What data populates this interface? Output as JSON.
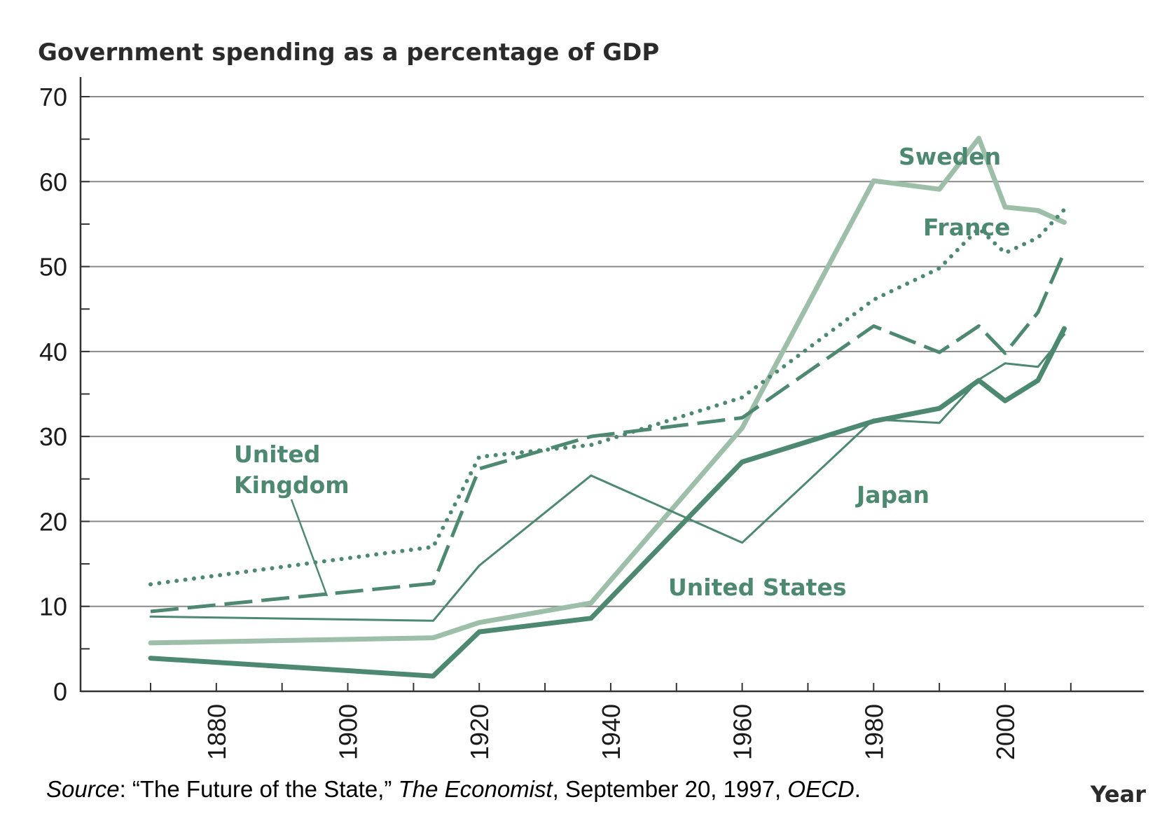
{
  "chart_data": {
    "type": "line",
    "ylabel": "Government spending as a percentage of GDP",
    "xlabel": "Year",
    "ylim": [
      0,
      70
    ],
    "xlim": [
      1860,
      2012
    ],
    "yticks": [
      0,
      10,
      20,
      30,
      40,
      50,
      60,
      70
    ],
    "xticks": [
      1880,
      1900,
      1920,
      1940,
      1960,
      1980,
      2000
    ],
    "grid": true,
    "series": [
      {
        "name": "France",
        "style": "dotted",
        "color": "#4d8870",
        "points": [
          [
            1870,
            12.6
          ],
          [
            1913,
            17.0
          ],
          [
            1920,
            27.6
          ],
          [
            1937,
            29.0
          ],
          [
            1960,
            34.6
          ],
          [
            1980,
            46.1
          ],
          [
            1990,
            49.8
          ],
          [
            1996,
            54.5
          ],
          [
            2000,
            51.6
          ],
          [
            2005,
            53.4
          ],
          [
            2009,
            56.7
          ]
        ]
      },
      {
        "name": "United Kingdom",
        "style": "dashed",
        "color": "#4d8870",
        "points": [
          [
            1870,
            9.4
          ],
          [
            1913,
            12.7
          ],
          [
            1920,
            26.2
          ],
          [
            1937,
            30.0
          ],
          [
            1960,
            32.2
          ],
          [
            1980,
            43.0
          ],
          [
            1990,
            39.9
          ],
          [
            1996,
            43.0
          ],
          [
            2000,
            39.8
          ],
          [
            2005,
            44.6
          ],
          [
            2009,
            51.7
          ]
        ]
      },
      {
        "name": "Japan",
        "style": "thin",
        "color": "#4d8870",
        "points": [
          [
            1870,
            8.8
          ],
          [
            1913,
            8.3
          ],
          [
            1920,
            14.8
          ],
          [
            1937,
            25.4
          ],
          [
            1960,
            17.5
          ],
          [
            1980,
            32.0
          ],
          [
            1990,
            31.6
          ],
          [
            1996,
            36.7
          ],
          [
            2000,
            38.6
          ],
          [
            2005,
            38.2
          ],
          [
            2009,
            42.0
          ]
        ]
      },
      {
        "name": "United States",
        "style": "thick",
        "color": "#4d8870",
        "points": [
          [
            1870,
            3.9
          ],
          [
            1913,
            1.8
          ],
          [
            1920,
            7.0
          ],
          [
            1937,
            8.6
          ],
          [
            1960,
            27.0
          ],
          [
            1980,
            31.8
          ],
          [
            1990,
            33.3
          ],
          [
            1996,
            36.6
          ],
          [
            2000,
            34.2
          ],
          [
            2005,
            36.6
          ],
          [
            2009,
            42.7
          ]
        ]
      },
      {
        "name": "Sweden",
        "style": "thick",
        "color": "#9dbea8",
        "points": [
          [
            1870,
            5.7
          ],
          [
            1913,
            6.3
          ],
          [
            1920,
            8.1
          ],
          [
            1937,
            10.4
          ],
          [
            1960,
            31.0
          ],
          [
            1980,
            60.1
          ],
          [
            1990,
            59.1
          ],
          [
            1996,
            65.1
          ],
          [
            2000,
            57.0
          ],
          [
            2005,
            56.6
          ],
          [
            2009,
            55.2
          ]
        ]
      }
    ],
    "annotations": {
      "source": {
        "prefix": "Source",
        "p1": ": “The Future of the State,” ",
        "publication": "The Economist",
        "p2": ", September 20, 1997, ",
        "org": "OECD",
        "p3": "."
      }
    }
  }
}
